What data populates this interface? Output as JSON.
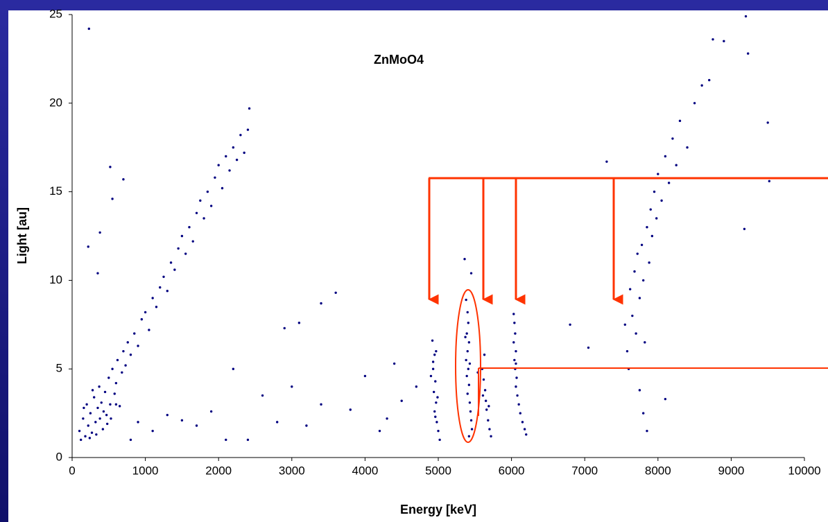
{
  "chart_data": {
    "type": "scatter",
    "title": "ZnMoO4",
    "x_label": "Energy  [keV]",
    "y_label": "Light  [au]",
    "xlim": [
      0,
      10000
    ],
    "ylim": [
      0,
      25
    ],
    "xticks": [
      0,
      1000,
      2000,
      3000,
      4000,
      5000,
      6000,
      7000,
      8000,
      9000,
      10000
    ],
    "yticks": [
      0,
      5,
      10,
      15,
      20,
      25
    ],
    "x": [
      100,
      150,
      180,
      200,
      220,
      250,
      270,
      300,
      320,
      350,
      370,
      400,
      420,
      450,
      470,
      500,
      520,
      550,
      580,
      600,
      620,
      650,
      680,
      700,
      730,
      760,
      800,
      850,
      900,
      950,
      1000,
      1050,
      1100,
      1150,
      1200,
      1250,
      1300,
      1350,
      1400,
      1450,
      1500,
      1550,
      1600,
      1650,
      1700,
      1750,
      1800,
      1850,
      1900,
      1950,
      2000,
      2050,
      2100,
      2150,
      2200,
      2250,
      2300,
      2350,
      2400,
      2420,
      230,
      520,
      550,
      380,
      350,
      700,
      220,
      120,
      160,
      240,
      280,
      330,
      380,
      430,
      480,
      530,
      600,
      800,
      900,
      1100,
      1300,
      1500,
      1700,
      1900,
      2100,
      2200,
      2400,
      2600,
      2800,
      3000,
      3200,
      3400,
      3600,
      3400,
      3800,
      4000,
      4200,
      4400,
      4500,
      3100,
      2900,
      4300,
      4700,
      4920,
      4950,
      4930,
      4960,
      4940,
      4970,
      4950,
      4980,
      5000,
      5020,
      4900,
      4990,
      4960,
      4930,
      4970,
      5380,
      5400,
      5410,
      5390,
      5420,
      5400,
      5380,
      5410,
      5390,
      5420,
      5400,
      5430,
      5440,
      5450,
      5460,
      5420,
      5370,
      5430,
      5360,
      5450,
      5600,
      5620,
      5640,
      5650,
      5660,
      5680,
      5700,
      5720,
      5630,
      5610,
      5690,
      5540,
      6030,
      6040,
      6050,
      6030,
      6060,
      6040,
      6050,
      6070,
      6060,
      6080,
      6100,
      6120,
      6150,
      6180,
      6200,
      6060,
      7500,
      7550,
      7580,
      7600,
      7620,
      7650,
      7680,
      7700,
      7720,
      7750,
      7780,
      7800,
      7820,
      7850,
      7880,
      7900,
      7920,
      7950,
      7980,
      8000,
      8050,
      8100,
      8150,
      8200,
      8250,
      8300,
      8400,
      8500,
      8600,
      8700,
      8750,
      8900,
      9200,
      9230,
      9500,
      9180,
      9520,
      7800,
      7750,
      7850,
      8100,
      7050,
      7300,
      6800
    ],
    "series": [
      {
        "color": "#000080",
        "values": [
          1.5,
          2.2,
          1.2,
          3.0,
          1.8,
          2.5,
          1.4,
          3.4,
          2.0,
          2.8,
          4.0,
          3.1,
          1.6,
          3.7,
          2.4,
          4.5,
          3.0,
          5.0,
          3.6,
          4.2,
          5.5,
          2.9,
          4.8,
          6.0,
          5.2,
          6.5,
          5.8,
          7.0,
          6.3,
          7.8,
          8.2,
          7.2,
          9.0,
          8.5,
          9.6,
          10.2,
          9.4,
          11.0,
          10.6,
          11.8,
          12.5,
          11.5,
          13.0,
          12.2,
          13.8,
          14.5,
          13.5,
          15.0,
          14.2,
          15.8,
          16.5,
          15.2,
          17.0,
          16.2,
          17.5,
          16.8,
          18.2,
          17.2,
          18.5,
          19.7,
          24.2,
          16.4,
          14.6,
          12.7,
          10.4,
          15.7,
          11.9,
          1.0,
          2.8,
          1.1,
          3.8,
          1.3,
          2.2,
          2.6,
          1.9,
          2.2,
          3.0,
          1.0,
          2.0,
          1.5,
          2.4,
          2.1,
          1.8,
          2.6,
          1.0,
          5.0,
          1.0,
          3.5,
          2.0,
          4.0,
          1.8,
          3.0,
          9.3,
          8.7,
          2.7,
          4.6,
          1.5,
          5.3,
          3.2,
          7.6,
          7.3,
          2.2,
          4.0,
          6.6,
          5.8,
          5.0,
          4.3,
          3.7,
          3.1,
          2.6,
          2.0,
          1.5,
          1.0,
          4.6,
          3.4,
          2.3,
          5.4,
          6.0,
          8.9,
          8.2,
          7.6,
          7.0,
          6.5,
          6.0,
          5.5,
          5.0,
          4.6,
          4.1,
          3.6,
          3.1,
          2.6,
          2.1,
          1.6,
          1.2,
          6.8,
          5.3,
          11.2,
          10.4,
          5.0,
          4.4,
          3.8,
          3.2,
          2.7,
          2.1,
          1.6,
          1.2,
          5.8,
          3.5,
          2.9,
          4.8,
          8.1,
          7.6,
          7.0,
          6.5,
          6.0,
          5.5,
          5.0,
          4.5,
          4.0,
          3.5,
          3.0,
          2.5,
          2.0,
          1.6,
          1.3,
          5.3,
          8.8,
          7.5,
          6.0,
          5.0,
          9.5,
          8.0,
          10.5,
          7.0,
          11.5,
          9.0,
          12.0,
          10.0,
          6.5,
          13.0,
          11.0,
          14.0,
          12.5,
          15.0,
          13.5,
          16.0,
          14.5,
          17.0,
          15.5,
          18.0,
          16.5,
          19.0,
          17.5,
          20.0,
          21.0,
          21.3,
          23.6,
          23.5,
          24.9,
          22.8,
          18.9,
          12.9,
          15.6,
          2.5,
          3.8,
          1.5,
          3.3,
          6.2,
          16.7,
          7.5
        ]
      }
    ]
  }
}
